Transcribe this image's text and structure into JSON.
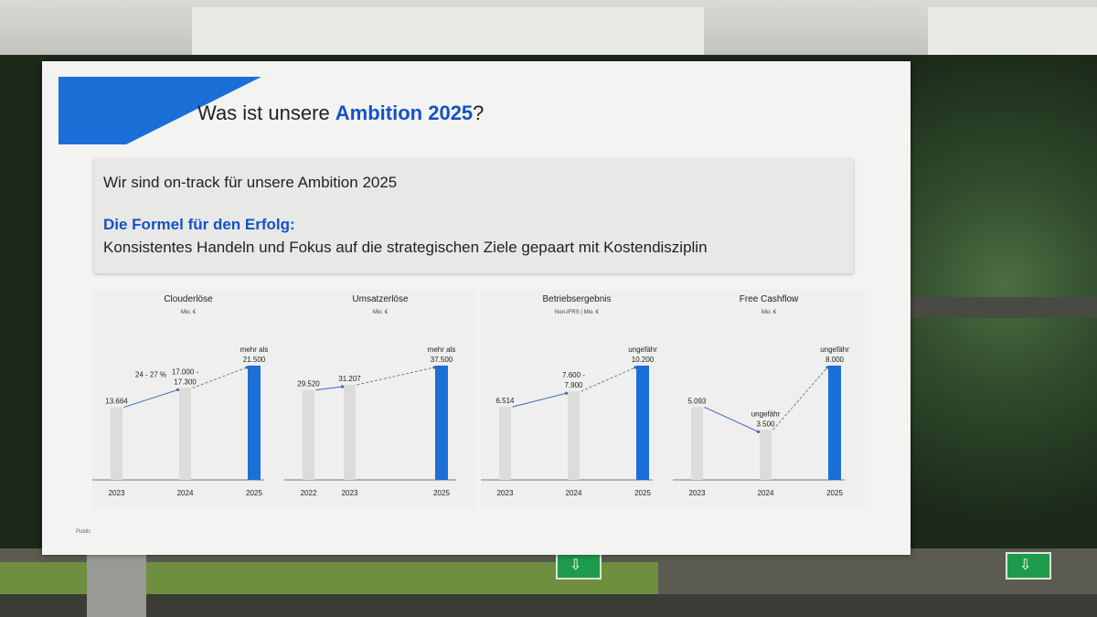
{
  "slide": {
    "title_prefix": "Was ist unsere ",
    "title_highlight": "Ambition 2025",
    "title_suffix": "?",
    "box_line1": "Wir sind on-track für unsere Ambition 2025",
    "formula_heading": "Die Formel für den Erfolg:",
    "formula_text": "Konsistentes Handeln und Fokus auf die strategischen Ziele gepaart mit Kostendisziplin",
    "footer": "Public"
  },
  "colors": {
    "accent": "#1b6fd6",
    "bar_past": "#dcdcda",
    "bar_target": "#1b6fd6"
  },
  "chart_data": [
    {
      "type": "bar",
      "title": "Clouderlöse",
      "subtitle": "Mio. €",
      "categories": [
        "2023",
        "2024",
        "2025"
      ],
      "values": [
        13664,
        17300,
        21500
      ],
      "value_labels": [
        [
          "13.664"
        ],
        [
          "17.000 -",
          "17.300"
        ],
        [
          "mehr als",
          "21.500"
        ]
      ],
      "growth_label": "24 - 27 %",
      "highlight_last": true
    },
    {
      "type": "bar",
      "title": "Umsatzerlöse",
      "subtitle": "Mio. €",
      "categories": [
        "2022",
        "2023",
        "2025"
      ],
      "values": [
        29520,
        31207,
        37500
      ],
      "value_labels": [
        [
          "29.520"
        ],
        [
          "31.207"
        ],
        [
          "mehr als",
          "37.500"
        ]
      ],
      "highlight_last": true
    },
    {
      "type": "bar",
      "title": "Betriebsergebnis",
      "subtitle": "Non-IFRS | Mio. €",
      "categories": [
        "2023",
        "2024",
        "2025"
      ],
      "values": [
        6514,
        7900,
        10200
      ],
      "value_labels": [
        [
          "6.514"
        ],
        [
          "7.600 -",
          "7.900"
        ],
        [
          "ungefähr",
          "10.200"
        ]
      ],
      "highlight_last": true
    },
    {
      "type": "bar",
      "title": "Free Cashflow",
      "subtitle": "Mio. €",
      "categories": [
        "2023",
        "2024",
        "2025"
      ],
      "values": [
        5093,
        3500,
        8000
      ],
      "value_labels": [
        [
          "5.093"
        ],
        [
          "ungefähr",
          "3.500"
        ],
        [
          "ungefähr",
          "8.000"
        ]
      ],
      "highlight_last": true
    }
  ]
}
